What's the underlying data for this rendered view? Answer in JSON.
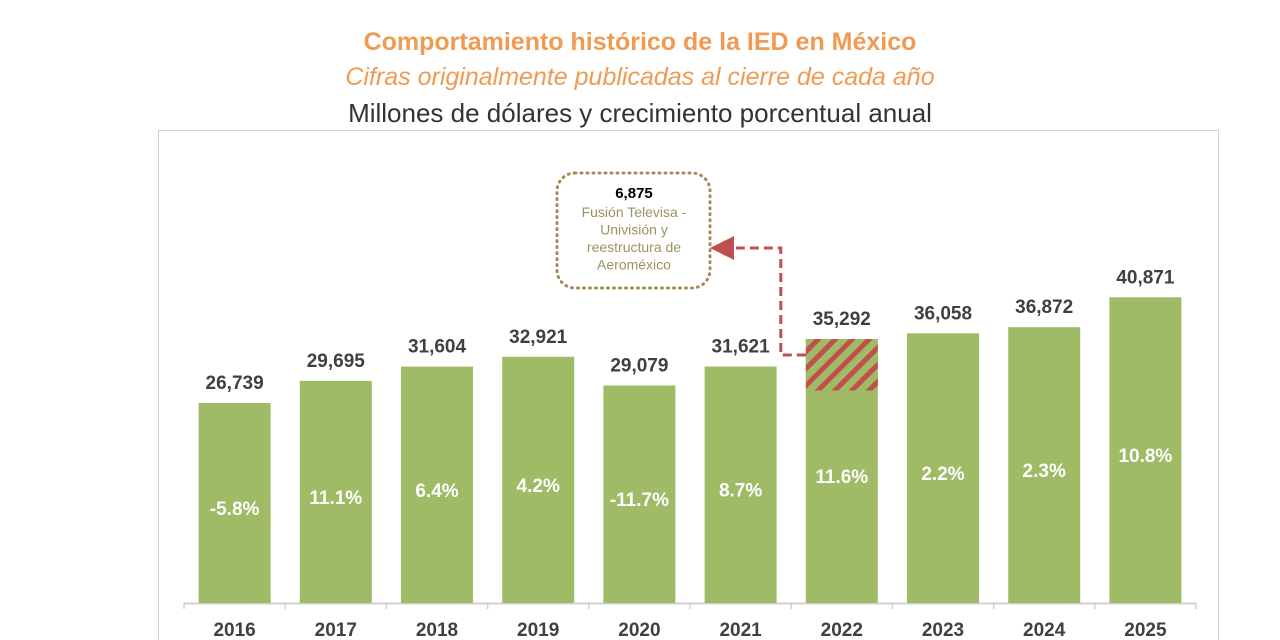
{
  "chart_data": {
    "type": "bar",
    "title": "Comportamiento histórico de la IED en México",
    "subtitle": "Cifras originalmente publicadas al cierre de cada año",
    "ylabel": "Millones de dólares y crecimiento porcentual anual",
    "categories": [
      "2016",
      "2017",
      "2018",
      "2019",
      "2020",
      "2021",
      "2022",
      "2023",
      "2024",
      "2025"
    ],
    "values": [
      26739,
      29695,
      31604,
      32921,
      29079,
      31621,
      35292,
      36058,
      36872,
      40871
    ],
    "value_labels": [
      "26,739",
      "29,695",
      "31,604",
      "32,921",
      "29,079",
      "31,621",
      "35,292",
      "36,058",
      "36,872",
      "40,871"
    ],
    "growth_labels": [
      "-5.8%",
      "11.1%",
      "6.4%",
      "4.2%",
      "-11.7%",
      "8.7%",
      "11.6%",
      "2.2%",
      "2.3%",
      "10.8%"
    ],
    "ylim": [
      0,
      42000
    ],
    "grid": false,
    "colors": {
      "bar": "#9fbb66",
      "hatch": "#c0504d",
      "annotation_border": "#a68a5b",
      "annotation_text": "#9c9260",
      "arrow": "#c0504d",
      "title": "#ef9b53"
    },
    "annotation": {
      "category": "2022",
      "segment_value": 6875,
      "value_label": "6,875",
      "text_lines": [
        "Fusión Televisa -",
        "Univisión  y",
        "reestructura  de",
        "Aeroméxico"
      ]
    }
  }
}
